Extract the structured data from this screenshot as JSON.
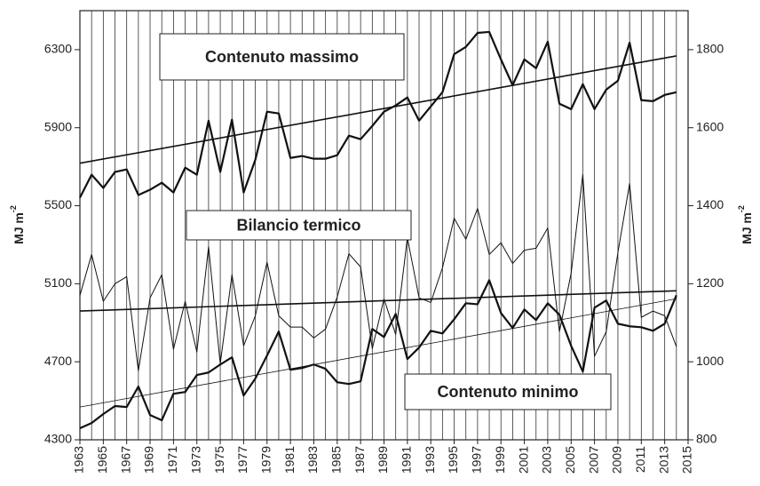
{
  "chart_data": {
    "type": "line",
    "y_label": "MJ m",
    "y_label_sup": "-2",
    "y2_label": "MJ m",
    "y2_label_sup": "-2",
    "x": [
      1963,
      1964,
      1965,
      1966,
      1967,
      1968,
      1969,
      1970,
      1971,
      1972,
      1973,
      1974,
      1975,
      1976,
      1977,
      1978,
      1979,
      1980,
      1981,
      1982,
      1983,
      1984,
      1985,
      1986,
      1987,
      1988,
      1989,
      1990,
      1991,
      1992,
      1993,
      1994,
      1995,
      1996,
      1997,
      1998,
      1999,
      2000,
      2001,
      2002,
      2003,
      2004,
      2005,
      2006,
      2007,
      2008,
      2009,
      2010,
      2011,
      2012,
      2013,
      2014
    ],
    "xlim": [
      1963,
      2015
    ],
    "xticks": [
      1963,
      1965,
      1967,
      1969,
      1971,
      1973,
      1975,
      1977,
      1979,
      1981,
      1983,
      1985,
      1987,
      1989,
      1991,
      1993,
      1995,
      1997,
      1999,
      2001,
      2003,
      2005,
      2007,
      2009,
      2011,
      2013,
      2015
    ],
    "x_minor_ticks": [
      1964,
      1966,
      1968,
      1970,
      1972,
      1974,
      1976,
      1978,
      1980,
      1982,
      1984,
      1986,
      1988,
      1990,
      1992,
      1994,
      1996,
      1998,
      2000,
      2002,
      2004,
      2006,
      2008,
      2010,
      2012,
      2014
    ],
    "ylim": [
      4300,
      6500
    ],
    "yticks": [
      4300,
      4700,
      5100,
      5500,
      5900,
      6300
    ],
    "y2lim": [
      800,
      1900
    ],
    "y2ticks": [
      800,
      1000,
      1200,
      1400,
      1600,
      1800
    ],
    "series": [
      {
        "name": "Contenuto massimo",
        "color": "#111",
        "width": 2.2,
        "values": [
          5541,
          5659,
          5591,
          5673,
          5686,
          5555,
          5582,
          5618,
          5568,
          5695,
          5659,
          5936,
          5673,
          5941,
          5568,
          5736,
          5982,
          5973,
          5745,
          5755,
          5741,
          5741,
          5759,
          5859,
          5841,
          5909,
          5982,
          6014,
          6055,
          5936,
          6009,
          6082,
          6277,
          6314,
          6386,
          6391,
          6250,
          6118,
          6250,
          6205,
          6341,
          6023,
          5995,
          6123,
          5995,
          6095,
          6141,
          6336,
          6041,
          6036,
          6068,
          6082
        ]
      },
      {
        "name": "Bilancio termico",
        "color": "#111",
        "width": 1,
        "axis": "y2",
        "values": [
          1170,
          1275,
          1155,
          1200,
          1218,
          977,
          1164,
          1223,
          1032,
          1155,
          1025,
          1295,
          995,
          1223,
          1041,
          1118,
          1255,
          1118,
          1089,
          1089,
          1061,
          1084,
          1166,
          1277,
          1243,
          1034,
          1161,
          1070,
          1318,
          1164,
          1152,
          1241,
          1368,
          1314,
          1393,
          1275,
          1305,
          1252,
          1286,
          1291,
          1343,
          1077,
          1227,
          1480,
          1014,
          1077,
          1280,
          1457,
          1114,
          1130,
          1118,
          1039
        ]
      },
      {
        "name": "Contenuto minimo",
        "color": "#111",
        "width": 2.2,
        "values": [
          4359,
          4386,
          4432,
          4473,
          4468,
          4573,
          4427,
          4400,
          4536,
          4545,
          4632,
          4645,
          4686,
          4723,
          4527,
          4614,
          4732,
          4855,
          4659,
          4668,
          4686,
          4664,
          4595,
          4586,
          4600,
          4868,
          4827,
          4945,
          4714,
          4773,
          4859,
          4845,
          4918,
          5000,
          4995,
          5118,
          4950,
          4873,
          4968,
          4914,
          5000,
          4941,
          4782,
          4650,
          4977,
          5014,
          4895,
          4882,
          4877,
          4859,
          4895,
          5041
        ]
      }
    ],
    "trend_lines": [
      {
        "x": [
          1963,
          2014
        ],
        "values": [
          5718,
          6268
        ],
        "color": "#111",
        "width": 1.6
      },
      {
        "x": [
          1963,
          2014
        ],
        "values": [
          1130,
          1182
        ],
        "color": "#111",
        "width": 1.6,
        "axis": "y2"
      },
      {
        "x": [
          1963,
          2014
        ],
        "values": [
          4468,
          5023
        ],
        "color": "#111",
        "width": 0.8
      }
    ],
    "grid": true
  }
}
